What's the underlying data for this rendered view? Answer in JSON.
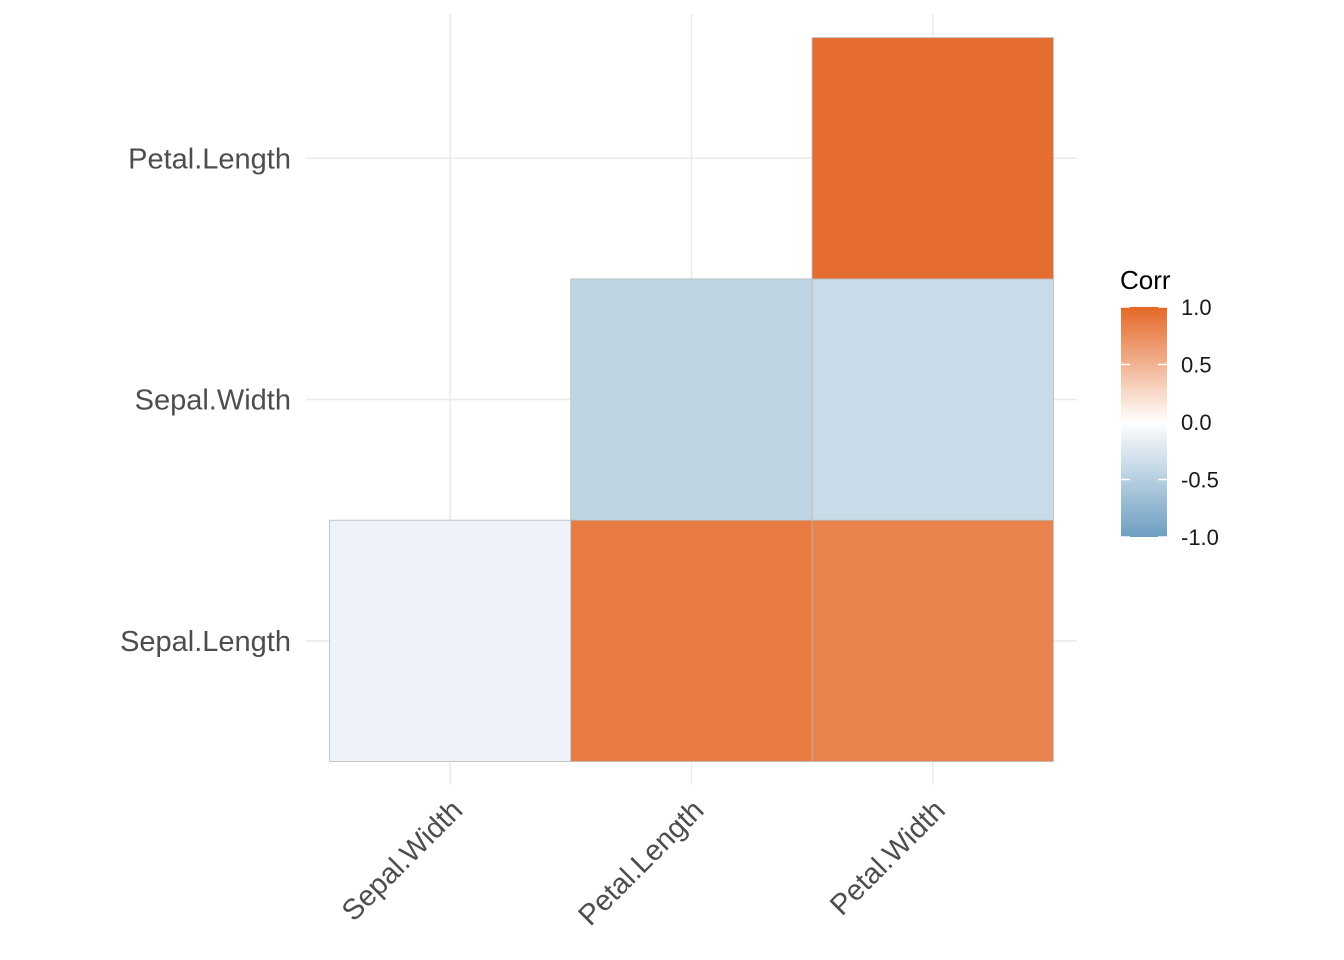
{
  "chart_data": {
    "type": "heatmap",
    "x_categories": [
      "Sepal.Width",
      "Petal.Length",
      "Petal.Width"
    ],
    "y_categories": [
      "Sepal.Length",
      "Sepal.Width",
      "Petal.Length"
    ],
    "cells": [
      {
        "x": "Sepal.Width",
        "y": "Sepal.Length",
        "value": -0.12
      },
      {
        "x": "Petal.Length",
        "y": "Sepal.Length",
        "value": 0.87
      },
      {
        "x": "Petal.Width",
        "y": "Sepal.Length",
        "value": 0.82
      },
      {
        "x": "Petal.Length",
        "y": "Sepal.Width",
        "value": -0.43
      },
      {
        "x": "Petal.Width",
        "y": "Sepal.Width",
        "value": -0.37
      },
      {
        "x": "Petal.Width",
        "y": "Petal.Length",
        "value": 0.96
      }
    ],
    "color_scale": {
      "low": "#6d9ec1",
      "mid": "#ffffff",
      "high": "#e46726",
      "limits": [
        -1,
        1
      ]
    },
    "legend": {
      "title": "Corr",
      "ticks": [
        "1.0",
        "0.5",
        "0.0",
        "-0.5",
        "-1.0"
      ],
      "position": "right"
    },
    "grid": true
  }
}
